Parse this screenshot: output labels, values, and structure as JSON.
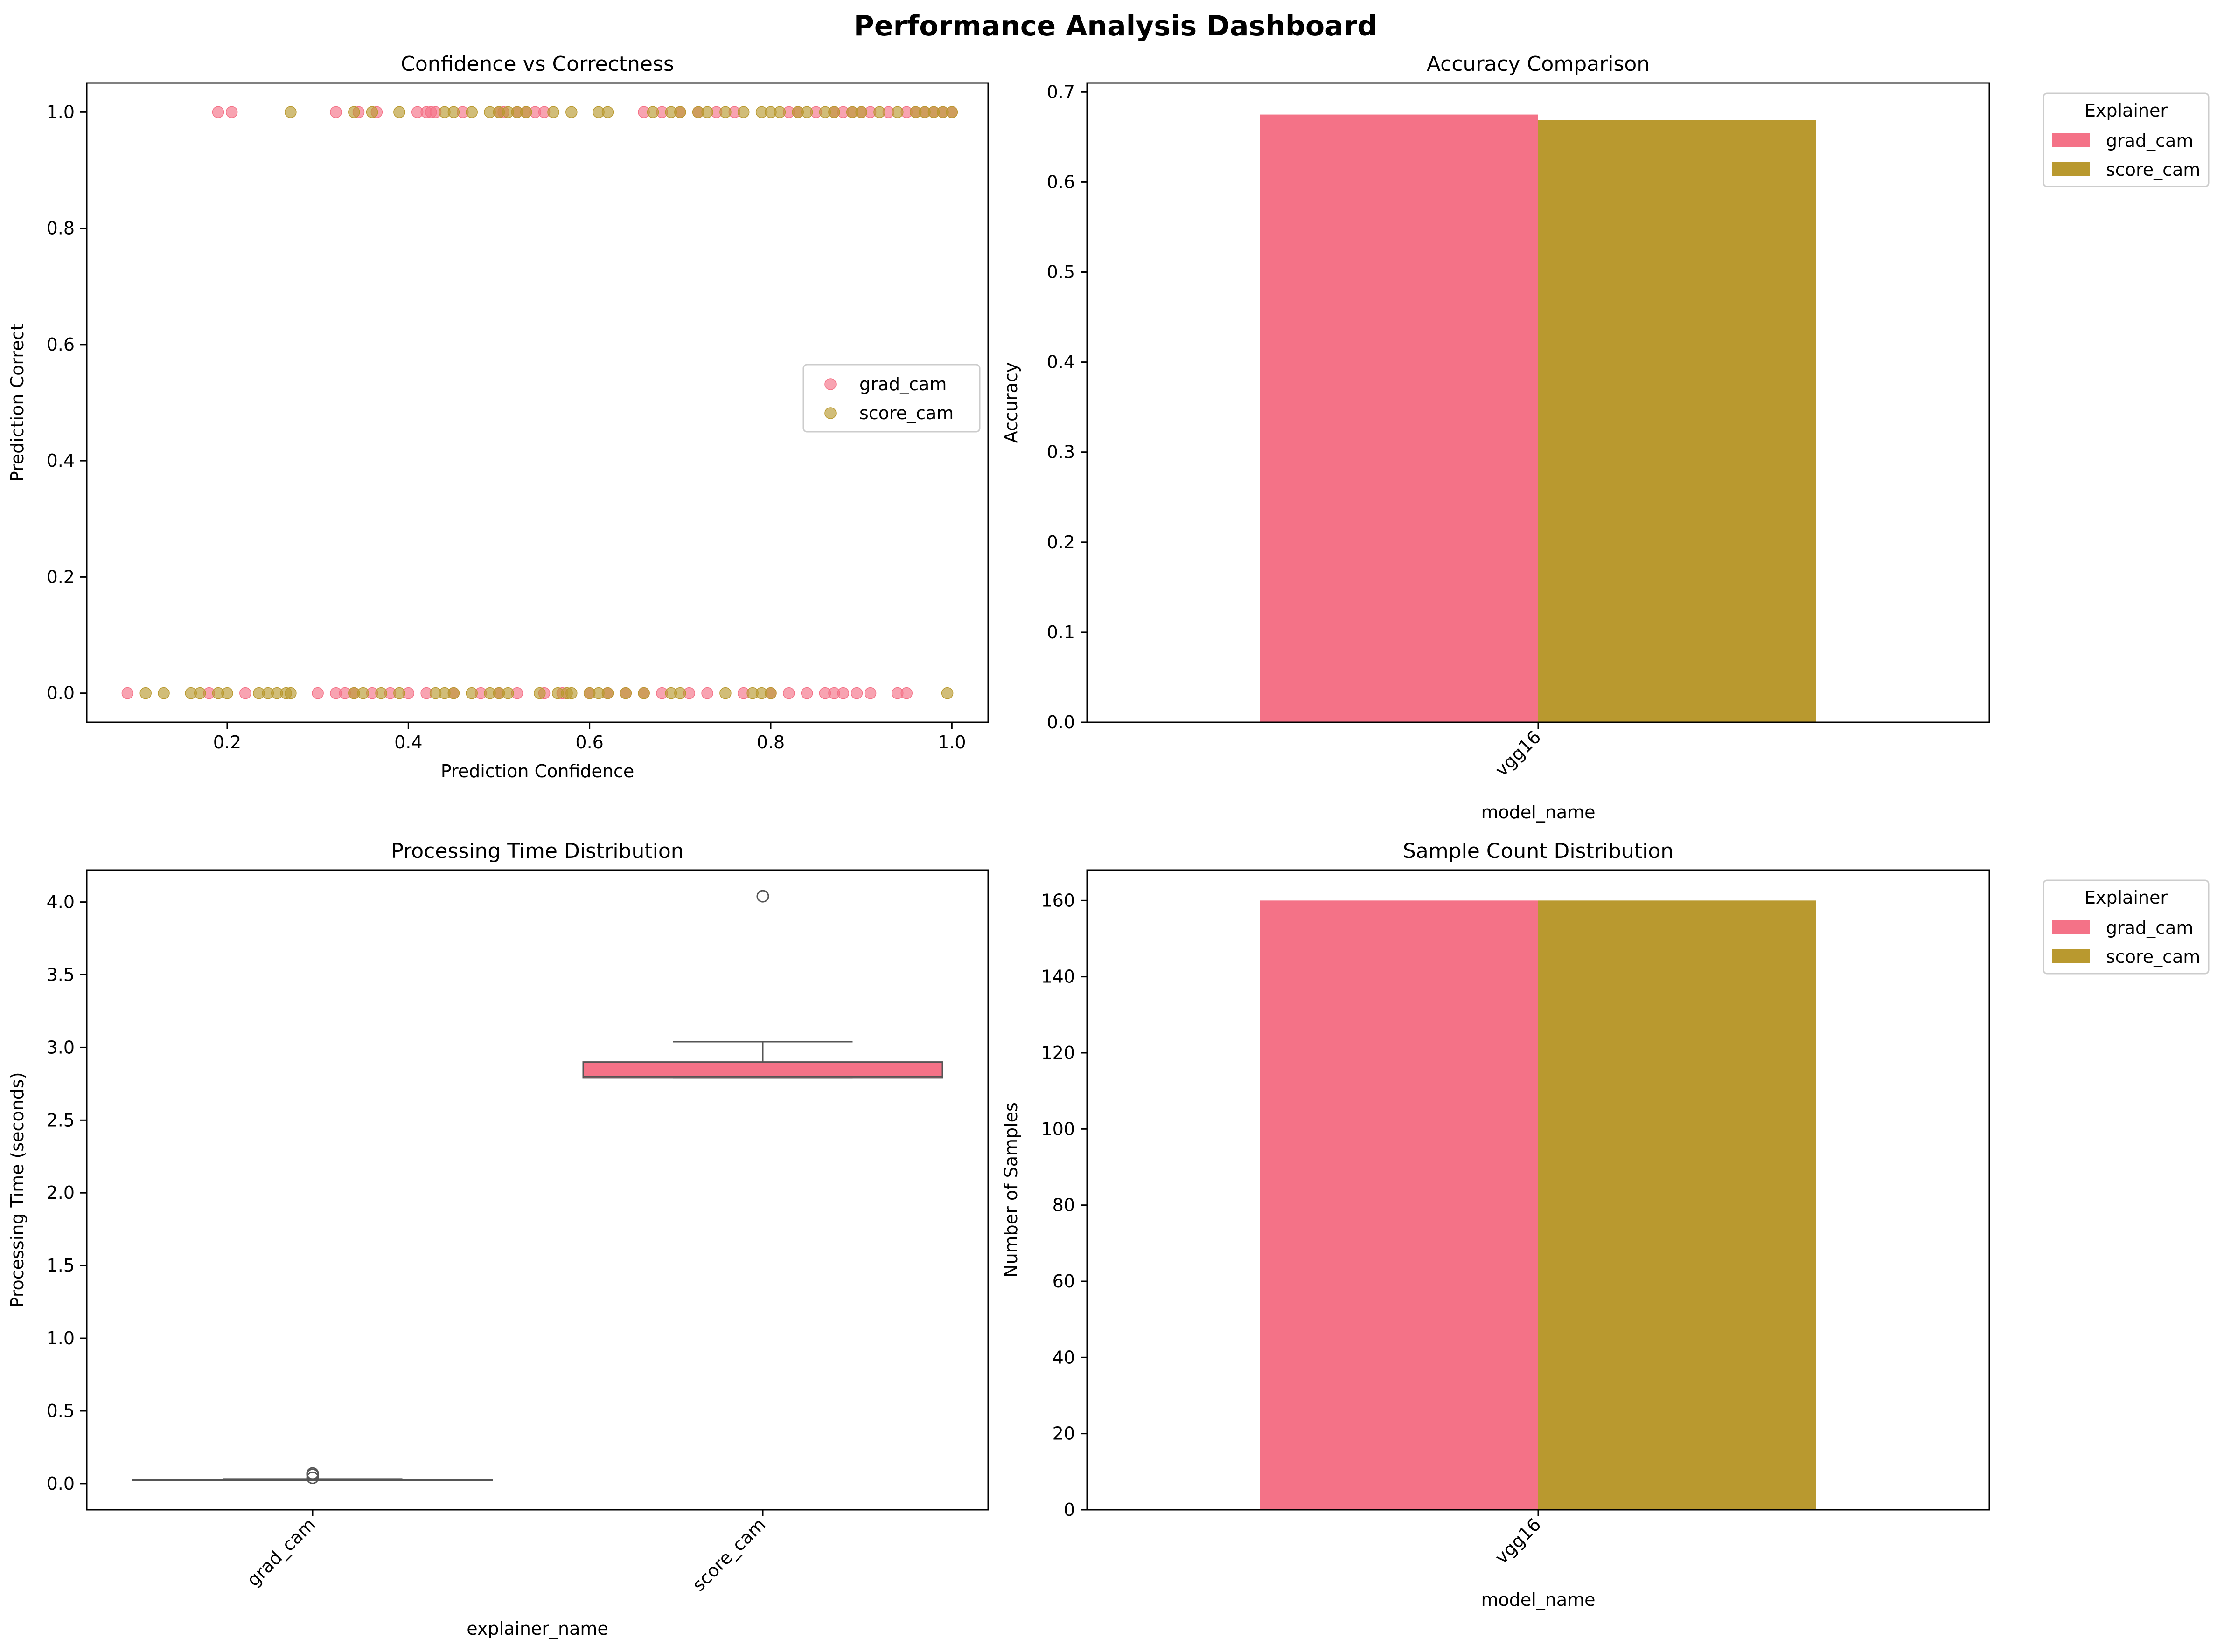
{
  "page_title": "Performance Analysis Dashboard",
  "colors": {
    "grad_cam": "#f47287",
    "score_cam": "#b9992f",
    "box": "#f47287",
    "box_line": "#555555"
  },
  "chart_data": [
    {
      "type": "scatter",
      "title": "Confidence vs Correctness",
      "xlabel": "Prediction Confidence",
      "ylabel": "Prediction Correct",
      "xlim": [
        0.045,
        1.04
      ],
      "ylim": [
        -0.05,
        1.05
      ],
      "xticks": [
        "0.2",
        "0.4",
        "0.6",
        "0.8",
        "1.0"
      ],
      "xtick_values": [
        0.2,
        0.4,
        0.6,
        0.8,
        1.0
      ],
      "yticks": [
        "0.0",
        "0.2",
        "0.4",
        "0.6",
        "0.8",
        "1.0"
      ],
      "ytick_values": [
        0.0,
        0.2,
        0.4,
        0.6,
        0.8,
        1.0
      ],
      "legend": {
        "position": "center-right",
        "entries": [
          "grad_cam",
          "score_cam"
        ]
      },
      "series": [
        {
          "name": "grad_cam",
          "points_y1": [
            0.19,
            0.205,
            0.32,
            0.345,
            0.365,
            0.41,
            0.42,
            0.425,
            0.43,
            0.46,
            0.5,
            0.505,
            0.52,
            0.53,
            0.54,
            0.55,
            0.66,
            0.68,
            0.7,
            0.72,
            0.74,
            0.76,
            0.82,
            0.83,
            0.85,
            0.87,
            0.88,
            0.89,
            0.9,
            0.91,
            0.93,
            0.95,
            0.96,
            0.97,
            0.98,
            0.99,
            1.0
          ],
          "points_y0": [
            0.09,
            0.18,
            0.22,
            0.3,
            0.32,
            0.33,
            0.34,
            0.36,
            0.38,
            0.4,
            0.42,
            0.45,
            0.48,
            0.5,
            0.52,
            0.55,
            0.57,
            0.6,
            0.62,
            0.64,
            0.66,
            0.68,
            0.71,
            0.73,
            0.77,
            0.8,
            0.82,
            0.84,
            0.86,
            0.87,
            0.88,
            0.895,
            0.91,
            0.94,
            0.95
          ]
        },
        {
          "name": "score_cam",
          "points_y1": [
            0.27,
            0.34,
            0.36,
            0.39,
            0.44,
            0.45,
            0.47,
            0.49,
            0.5,
            0.51,
            0.52,
            0.53,
            0.56,
            0.58,
            0.61,
            0.62,
            0.67,
            0.69,
            0.7,
            0.72,
            0.73,
            0.75,
            0.77,
            0.79,
            0.8,
            0.81,
            0.83,
            0.84,
            0.86,
            0.87,
            0.89,
            0.9,
            0.92,
            0.94,
            0.96,
            0.97,
            0.98,
            0.99,
            1.0
          ],
          "points_y0": [
            0.11,
            0.13,
            0.16,
            0.17,
            0.19,
            0.2,
            0.235,
            0.245,
            0.255,
            0.265,
            0.27,
            0.34,
            0.35,
            0.37,
            0.39,
            0.43,
            0.44,
            0.45,
            0.47,
            0.49,
            0.5,
            0.51,
            0.545,
            0.565,
            0.575,
            0.58,
            0.6,
            0.61,
            0.62,
            0.64,
            0.66,
            0.69,
            0.7,
            0.75,
            0.78,
            0.79,
            0.8,
            0.995
          ]
        }
      ]
    },
    {
      "type": "bar",
      "title": "Accuracy Comparison",
      "xlabel": "model_name",
      "ylabel": "Accuracy",
      "categories": [
        "vgg16"
      ],
      "ylim": [
        0,
        0.71
      ],
      "yticks": [
        "0.0",
        "0.1",
        "0.2",
        "0.3",
        "0.4",
        "0.5",
        "0.6",
        "0.7"
      ],
      "ytick_values": [
        0.0,
        0.1,
        0.2,
        0.3,
        0.4,
        0.5,
        0.6,
        0.7
      ],
      "legend": {
        "position": "outside-top-right",
        "title": "Explainer",
        "entries": [
          "grad_cam",
          "score_cam"
        ]
      },
      "series": [
        {
          "name": "grad_cam",
          "values": [
            0.675
          ]
        },
        {
          "name": "score_cam",
          "values": [
            0.669
          ]
        }
      ]
    },
    {
      "type": "box",
      "title": "Processing Time Distribution",
      "xlabel": "explainer_name",
      "ylabel": "Processing Time (seconds)",
      "categories": [
        "grad_cam",
        "score_cam"
      ],
      "ylim": [
        -0.18,
        4.22
      ],
      "yticks": [
        "0.0",
        "0.5",
        "1.0",
        "1.5",
        "2.0",
        "2.5",
        "3.0",
        "3.5",
        "4.0"
      ],
      "ytick_values": [
        0.0,
        0.5,
        1.0,
        1.5,
        2.0,
        2.5,
        3.0,
        3.5,
        4.0
      ],
      "boxes": [
        {
          "name": "grad_cam",
          "min": 0.025,
          "q1": 0.025,
          "median": 0.027,
          "q3": 0.03,
          "max": 0.032,
          "outliers": [
            0.04,
            0.06,
            0.07
          ]
        },
        {
          "name": "score_cam",
          "min": 2.79,
          "q1": 2.79,
          "median": 2.8,
          "q3": 2.9,
          "max": 3.04,
          "outliers": [
            4.04
          ]
        }
      ]
    },
    {
      "type": "bar",
      "title": "Sample Count Distribution",
      "xlabel": "model_name",
      "ylabel": "Number of Samples",
      "categories": [
        "vgg16"
      ],
      "ylim": [
        0,
        168
      ],
      "yticks": [
        "0",
        "20",
        "40",
        "60",
        "80",
        "100",
        "120",
        "140",
        "160"
      ],
      "ytick_values": [
        0,
        20,
        40,
        60,
        80,
        100,
        120,
        140,
        160
      ],
      "legend": {
        "position": "outside-top-right",
        "title": "Explainer",
        "entries": [
          "grad_cam",
          "score_cam"
        ]
      },
      "series": [
        {
          "name": "grad_cam",
          "values": [
            160
          ]
        },
        {
          "name": "score_cam",
          "values": [
            160
          ]
        }
      ]
    }
  ]
}
